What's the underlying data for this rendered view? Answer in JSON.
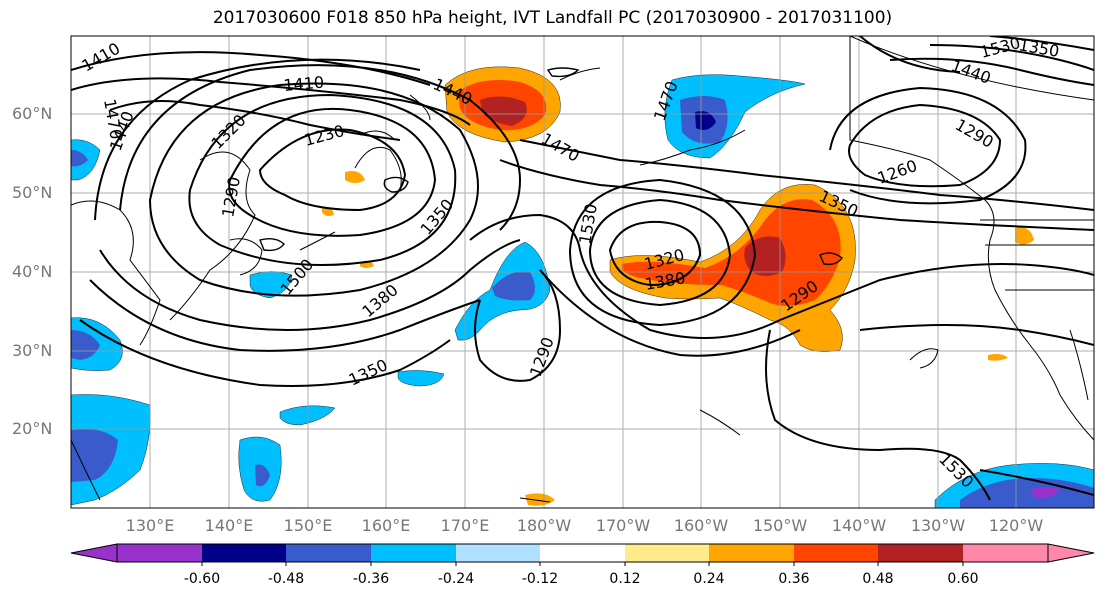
{
  "title": "2017030600 F018 850 hPa height, IVT Landfall PC (2017030900 - 2017031100)",
  "lat_labels": [
    "60°N",
    "50°N",
    "40°N",
    "30°N",
    "20°N"
  ],
  "lon_labels": [
    "130°E",
    "140°E",
    "150°E",
    "160°E",
    "170°E",
    "180°W",
    "170°W",
    "160°W",
    "150°W",
    "140°W",
    "130°W",
    "120°W"
  ],
  "colorbar": {
    "colors": [
      "#9932cc",
      "#00008b",
      "#3a5bcc",
      "#00bfff",
      "#afe0ff",
      "#ffffff",
      "#ffeb8a",
      "#ffa500",
      "#ff4500",
      "#b22222",
      "#ff88aa"
    ],
    "tick_labels": [
      "-0.60",
      "-0.48",
      "-0.36",
      "-0.24",
      "-0.12",
      "0.12",
      "0.24",
      "0.36",
      "0.48",
      "0.60"
    ]
  },
  "contour_labels": [
    "1410",
    "1410",
    "1470",
    "1440",
    "1320",
    "1230",
    "1290",
    "1350",
    "1440",
    "1500",
    "1380",
    "1350",
    "1470",
    "1530",
    "1290",
    "1320",
    "1380",
    "1470",
    "1350",
    "1290",
    "1260",
    "1290",
    "1350",
    "1530",
    "1440"
  ]
}
